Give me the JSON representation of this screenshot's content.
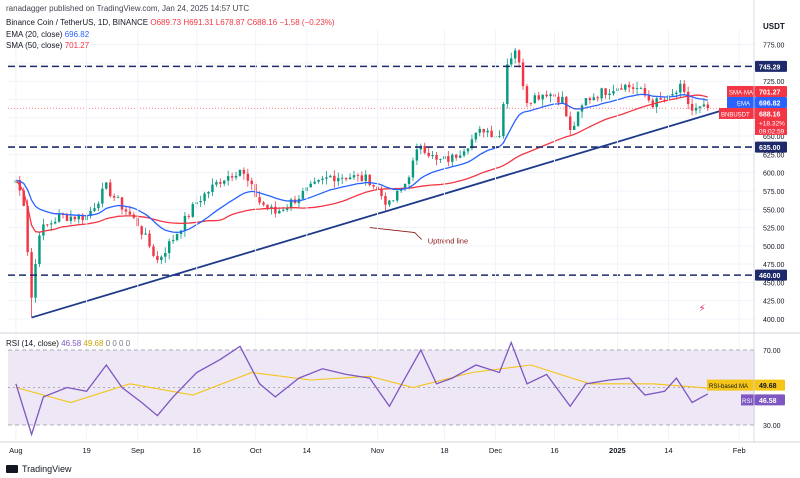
{
  "header": {
    "publisher": "ranadagger published on TradingView.com, Jan 24, 2025 14:57 UTC",
    "symbol_line": "Binance Coin / TetherUS, 1D, BINANCE",
    "ohlc": {
      "o": "O689.73",
      "h": "H691.31",
      "l": "L678.87",
      "c": "C688.16",
      "chg": "−1.58 (−0.23%)"
    },
    "ema_line": {
      "label": "EMA (20, close)",
      "value": "696.82"
    },
    "sma_line": {
      "label": "SMA (50, close)",
      "value": "701.27"
    },
    "rsi_line": {
      "label": "RSI (14, close)",
      "value": "46.58",
      "ma_value": "49.68",
      "dots": "0 0 0 0"
    }
  },
  "price_scale": {
    "currency": "USDT",
    "ticks": [
      "775.00",
      "750.00",
      "725.00",
      "700.00",
      "675.00",
      "650.00",
      "625.00",
      "600.00",
      "575.00",
      "550.00",
      "525.00",
      "500.00",
      "475.00",
      "450.00",
      "425.00",
      "400.00"
    ],
    "tags": [
      {
        "label": "745.29",
        "kind": "level"
      },
      {
        "label": "SMA·MA",
        "value": "701.27",
        "kind": "sma"
      },
      {
        "label": "EMA",
        "value": "696.82",
        "kind": "ema"
      },
      {
        "label": "BNBUSDT",
        "value": "688.16",
        "extra": "+18.32%",
        "timer": "09:02:59",
        "kind": "last"
      },
      {
        "label": "635.00",
        "kind": "level"
      },
      {
        "label": "460.00",
        "kind": "level"
      }
    ]
  },
  "rsi_scale": {
    "ticks": [
      "70.00",
      "50.00",
      "30.00"
    ],
    "tags": [
      {
        "label": "RSI-based MA",
        "value": "49.68"
      },
      {
        "label": "RSI",
        "value": "46.58"
      }
    ]
  },
  "time_axis": [
    "Aug",
    "19",
    "Sep",
    "16",
    "Oct",
    "14",
    "Nov",
    "18",
    "Dec",
    "16",
    "2025",
    "14",
    "Feb"
  ],
  "annotation": "Uptrend line",
  "footer": {
    "brand": "TradingView"
  },
  "colors": {
    "up": "#089981",
    "down": "#f23645",
    "ema": "#2962ff",
    "sma": "#f23645",
    "level": "#1e2a6b",
    "trend": "#1e3a8a",
    "rsi": "#7e57c2",
    "rsi_ma": "#f5c518",
    "rsi_band": "#ede7f6"
  },
  "chart_data": [
    {
      "type": "candlestick",
      "title": "Binance Coin / TetherUS, 1D, BINANCE",
      "ylim": [
        385,
        795
      ],
      "price_levels": [
        745.29,
        635.0,
        460.0
      ],
      "trend_line": {
        "from": {
          "date": "Aug 5",
          "y": 402
        },
        "to": {
          "date": "Jan 24",
          "y": 680
        }
      },
      "waypoints": [
        {
          "date": "Aug 1",
          "close": 590
        },
        {
          "date": "Aug 3",
          "close": 560
        },
        {
          "date": "Aug 5",
          "close": 430
        },
        {
          "date": "Aug 7",
          "close": 520
        },
        {
          "date": "Aug 12",
          "close": 540
        },
        {
          "date": "Aug 19",
          "close": 540
        },
        {
          "date": "Aug 24",
          "close": 580
        },
        {
          "date": "Aug 27",
          "close": 560
        },
        {
          "date": "Sep 1",
          "close": 530
        },
        {
          "date": "Sep 6",
          "close": 480
        },
        {
          "date": "Sep 10",
          "close": 510
        },
        {
          "date": "Sep 16",
          "close": 560
        },
        {
          "date": "Sep 22",
          "close": 590
        },
        {
          "date": "Sep 27",
          "close": 605
        },
        {
          "date": "Oct 2",
          "close": 560
        },
        {
          "date": "Oct 6",
          "close": 545
        },
        {
          "date": "Oct 10",
          "close": 560
        },
        {
          "date": "Oct 14",
          "close": 575
        },
        {
          "date": "Oct 20",
          "close": 595
        },
        {
          "date": "Oct 25",
          "close": 595
        },
        {
          "date": "Oct 30",
          "close": 590
        },
        {
          "date": "Nov 4",
          "close": 555
        },
        {
          "date": "Nov 8",
          "close": 585
        },
        {
          "date": "Nov 12",
          "close": 640
        },
        {
          "date": "Nov 16",
          "close": 615
        },
        {
          "date": "Nov 20",
          "close": 620
        },
        {
          "date": "Nov 24",
          "close": 640
        },
        {
          "date": "Nov 28",
          "close": 660
        },
        {
          "date": "Dec 2",
          "close": 650
        },
        {
          "date": "Dec 4",
          "close": 750
        },
        {
          "date": "Dec 6",
          "close": 770
        },
        {
          "date": "Dec 9",
          "close": 700
        },
        {
          "date": "Dec 14",
          "close": 710
        },
        {
          "date": "Dec 18",
          "close": 700
        },
        {
          "date": "Dec 20",
          "close": 655
        },
        {
          "date": "Dec 24",
          "close": 700
        },
        {
          "date": "Dec 28",
          "close": 710
        },
        {
          "date": "Jan 2",
          "close": 720
        },
        {
          "date": "Jan 6",
          "close": 715
        },
        {
          "date": "Jan 10",
          "close": 695
        },
        {
          "date": "Jan 14",
          "close": 700
        },
        {
          "date": "Jan 17",
          "close": 715
        },
        {
          "date": "Jan 20",
          "close": 685
        },
        {
          "date": "Jan 24",
          "close": 688.16
        }
      ],
      "series": [
        {
          "name": "EMA (20, close)",
          "last": 696.82
        },
        {
          "name": "SMA (50, close)",
          "last": 701.27
        }
      ]
    },
    {
      "type": "line",
      "title": "RSI (14, close)",
      "ylim": [
        22,
        78
      ],
      "bands": [
        30,
        70
      ],
      "series": [
        {
          "name": "RSI",
          "last": 46.58,
          "points": [
            {
              "date": "Aug 1",
              "v": 52
            },
            {
              "date": "Aug 5",
              "v": 25
            },
            {
              "date": "Aug 8",
              "v": 45
            },
            {
              "date": "Aug 14",
              "v": 50
            },
            {
              "date": "Aug 19",
              "v": 48
            },
            {
              "date": "Aug 24",
              "v": 62
            },
            {
              "date": "Aug 28",
              "v": 50
            },
            {
              "date": "Sep 2",
              "v": 42
            },
            {
              "date": "Sep 6",
              "v": 35
            },
            {
              "date": "Sep 10",
              "v": 45
            },
            {
              "date": "Sep 16",
              "v": 58
            },
            {
              "date": "Sep 22",
              "v": 65
            },
            {
              "date": "Sep 27",
              "v": 72
            },
            {
              "date": "Oct 2",
              "v": 52
            },
            {
              "date": "Oct 6",
              "v": 45
            },
            {
              "date": "Oct 12",
              "v": 55
            },
            {
              "date": "Oct 18",
              "v": 60
            },
            {
              "date": "Oct 24",
              "v": 57
            },
            {
              "date": "Oct 30",
              "v": 55
            },
            {
              "date": "Nov 4",
              "v": 40
            },
            {
              "date": "Nov 8",
              "v": 55
            },
            {
              "date": "Nov 12",
              "v": 70
            },
            {
              "date": "Nov 16",
              "v": 52
            },
            {
              "date": "Nov 20",
              "v": 55
            },
            {
              "date": "Nov 26",
              "v": 62
            },
            {
              "date": "Dec 2",
              "v": 58
            },
            {
              "date": "Dec 5",
              "v": 74
            },
            {
              "date": "Dec 9",
              "v": 52
            },
            {
              "date": "Dec 14",
              "v": 57
            },
            {
              "date": "Dec 20",
              "v": 40
            },
            {
              "date": "Dec 24",
              "v": 52
            },
            {
              "date": "Dec 30",
              "v": 54
            },
            {
              "date": "Jan 4",
              "v": 55
            },
            {
              "date": "Jan 8",
              "v": 46
            },
            {
              "date": "Jan 13",
              "v": 48
            },
            {
              "date": "Jan 16",
              "v": 55
            },
            {
              "date": "Jan 20",
              "v": 42
            },
            {
              "date": "Jan 24",
              "v": 46.58
            }
          ]
        },
        {
          "name": "RSI-based MA",
          "last": 49.68,
          "points": [
            {
              "date": "Aug 1",
              "v": 50
            },
            {
              "date": "Aug 15",
              "v": 42
            },
            {
              "date": "Aug 30",
              "v": 52
            },
            {
              "date": "Sep 15",
              "v": 46
            },
            {
              "date": "Sep 30",
              "v": 58
            },
            {
              "date": "Oct 15",
              "v": 54
            },
            {
              "date": "Oct 30",
              "v": 56
            },
            {
              "date": "Nov 10",
              "v": 50
            },
            {
              "date": "Nov 25",
              "v": 58
            },
            {
              "date": "Dec 10",
              "v": 62
            },
            {
              "date": "Dec 25",
              "v": 52
            },
            {
              "date": "Jan 10",
              "v": 52
            },
            {
              "date": "Jan 24",
              "v": 49.68
            }
          ]
        }
      ]
    }
  ]
}
